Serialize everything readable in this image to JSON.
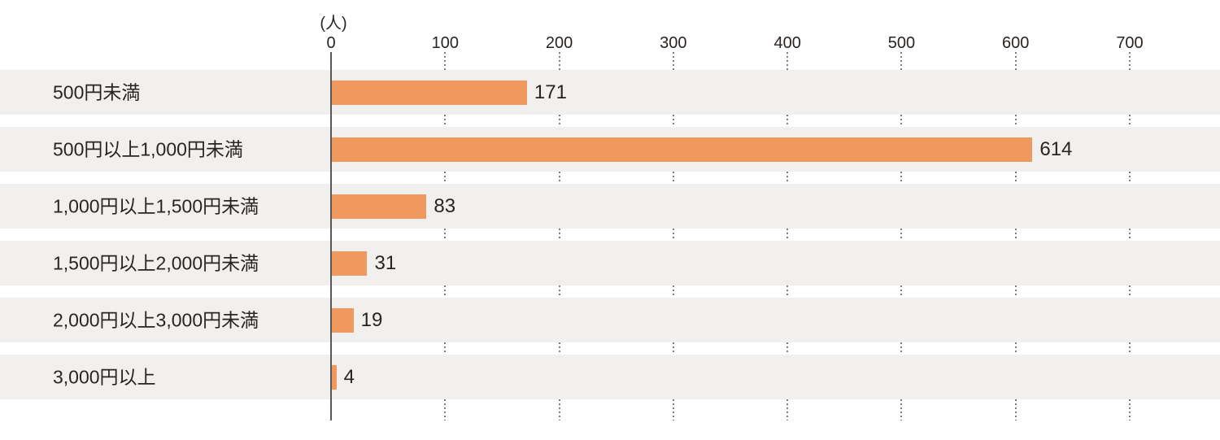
{
  "chart_data": {
    "type": "bar",
    "orientation": "horizontal",
    "title": "",
    "unit_label": "(人)",
    "categories": [
      "500円未満",
      "500円以上1,000円未満",
      "1,000円以上1,500円未満",
      "1,500円以上2,000円未満",
      "2,000円以上3,000円未満",
      "3,000円以上"
    ],
    "values": [
      171,
      614,
      83,
      31,
      19,
      4
    ],
    "xlim": [
      0,
      700
    ],
    "x_ticks": [
      0,
      100,
      200,
      300,
      400,
      500,
      600,
      700
    ],
    "legend": "none",
    "grid": "dotted vertical lines at each x tick, drawn only in gaps between row stripes",
    "colors": {
      "bar": "#F0995F",
      "row_stripe": "#F1F0EE",
      "text": "#2A2420",
      "axis_line": "#595757",
      "gridline": "#7d7d7d"
    }
  }
}
